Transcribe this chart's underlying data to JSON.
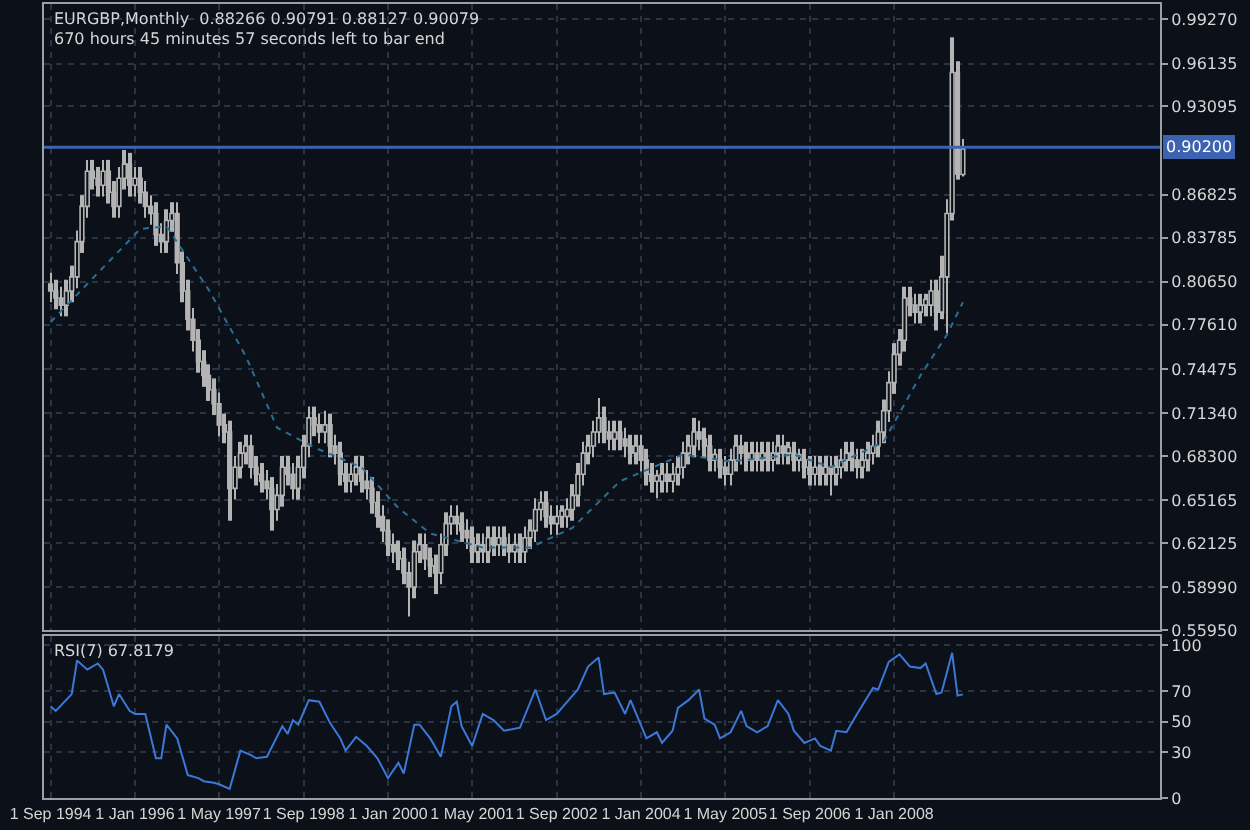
{
  "chart_data": [
    {
      "type": "candlestick",
      "title": "EURGBP,Monthly  0.88266 0.90791 0.88127 0.90079",
      "subtitle": "670 hours 45 minutes 57 seconds left to bar end",
      "color": "#b4b4b4",
      "x": [
        "1994-09",
        "1994-10",
        "1994-11",
        "1994-12",
        "1995-01",
        "1995-02",
        "1995-03",
        "1995-04",
        "1995-05",
        "1995-06",
        "1995-07",
        "1995-08",
        "1995-09",
        "1995-10",
        "1995-11",
        "1995-12",
        "1996-01",
        "1996-02",
        "1996-03",
        "1996-04",
        "1996-05",
        "1996-06",
        "1996-07",
        "1996-08",
        "1996-09",
        "1996-10",
        "1996-11",
        "1996-12",
        "1997-01",
        "1997-02",
        "1997-03",
        "1997-04",
        "1997-05",
        "1997-06",
        "1997-07",
        "1997-08",
        "1997-09",
        "1997-10",
        "1997-11",
        "1997-12",
        "1998-01",
        "1998-02",
        "1998-03",
        "1998-04",
        "1998-05",
        "1998-06",
        "1998-07",
        "1998-08",
        "1998-09",
        "1998-10",
        "1998-11",
        "1998-12",
        "1999-01",
        "1999-02",
        "1999-03",
        "1999-04",
        "1999-05",
        "1999-06",
        "1999-07",
        "1999-08",
        "1999-09",
        "1999-10",
        "1999-11",
        "1999-12",
        "2000-01",
        "2000-02",
        "2000-03",
        "2000-04",
        "2000-05",
        "2000-06",
        "2000-07",
        "2000-08",
        "2000-09",
        "2000-10",
        "2000-11",
        "2000-12",
        "2001-01",
        "2001-02",
        "2001-03",
        "2001-04",
        "2001-05",
        "2001-06",
        "2001-07",
        "2001-08",
        "2001-09",
        "2001-10",
        "2001-11",
        "2001-12",
        "2002-01",
        "2002-02",
        "2002-03",
        "2002-04",
        "2002-05",
        "2002-06",
        "2002-07",
        "2002-08",
        "2002-09",
        "2002-10",
        "2002-11",
        "2002-12",
        "2003-01",
        "2003-02",
        "2003-03",
        "2003-04",
        "2003-05",
        "2003-06",
        "2003-07",
        "2003-08",
        "2003-09",
        "2003-10",
        "2003-11",
        "2003-12",
        "2004-01",
        "2004-02",
        "2004-03",
        "2004-04",
        "2004-05",
        "2004-06",
        "2004-07",
        "2004-08",
        "2004-09",
        "2004-10",
        "2004-11",
        "2004-12",
        "2005-01",
        "2005-02",
        "2005-03",
        "2005-04",
        "2005-05",
        "2005-06",
        "2005-07",
        "2005-08",
        "2005-09",
        "2005-10",
        "2005-11",
        "2005-12",
        "2006-01",
        "2006-02",
        "2006-03",
        "2006-04",
        "2006-05",
        "2006-06",
        "2006-07",
        "2006-08",
        "2006-09",
        "2006-10",
        "2006-11",
        "2006-12",
        "2007-01",
        "2007-02",
        "2007-03",
        "2007-04",
        "2007-05",
        "2007-06",
        "2007-07",
        "2007-08",
        "2007-09",
        "2007-10",
        "2007-11",
        "2007-12",
        "2008-01",
        "2008-02",
        "2008-03",
        "2008-04",
        "2008-05",
        "2008-06",
        "2008-07",
        "2008-08",
        "2008-09",
        "2008-10",
        "2008-11",
        "2008-12",
        "2009-01",
        "2009-02"
      ],
      "ohlc": [
        [
          0.805,
          0.813,
          0.792,
          0.8
        ],
        [
          0.8,
          0.808,
          0.787,
          0.795
        ],
        [
          0.795,
          0.803,
          0.782,
          0.79
        ],
        [
          0.79,
          0.808,
          0.782,
          0.8
        ],
        [
          0.8,
          0.818,
          0.792,
          0.81
        ],
        [
          0.81,
          0.843,
          0.802,
          0.835
        ],
        [
          0.835,
          0.868,
          0.827,
          0.86
        ],
        [
          0.86,
          0.893,
          0.852,
          0.885
        ],
        [
          0.885,
          0.893,
          0.872,
          0.88
        ],
        [
          0.88,
          0.888,
          0.867,
          0.875
        ],
        [
          0.875,
          0.893,
          0.867,
          0.885
        ],
        [
          0.885,
          0.893,
          0.862,
          0.87
        ],
        [
          0.87,
          0.878,
          0.852,
          0.86
        ],
        [
          0.86,
          0.888,
          0.852,
          0.88
        ],
        [
          0.88,
          0.9,
          0.872,
          0.89
        ],
        [
          0.89,
          0.898,
          0.867,
          0.875
        ],
        [
          0.875,
          0.888,
          0.867,
          0.88
        ],
        [
          0.88,
          0.888,
          0.862,
          0.87
        ],
        [
          0.87,
          0.878,
          0.852,
          0.86
        ],
        [
          0.86,
          0.868,
          0.847,
          0.855
        ],
        [
          0.855,
          0.863,
          0.832,
          0.84
        ],
        [
          0.84,
          0.848,
          0.827,
          0.835
        ],
        [
          0.835,
          0.858,
          0.827,
          0.85
        ],
        [
          0.85,
          0.863,
          0.842,
          0.855
        ],
        [
          0.855,
          0.863,
          0.812,
          0.82
        ],
        [
          0.82,
          0.828,
          0.792,
          0.8
        ],
        [
          0.8,
          0.808,
          0.772,
          0.78
        ],
        [
          0.78,
          0.788,
          0.757,
          0.765
        ],
        [
          0.765,
          0.773,
          0.742,
          0.75
        ],
        [
          0.75,
          0.758,
          0.732,
          0.74
        ],
        [
          0.74,
          0.748,
          0.722,
          0.73
        ],
        [
          0.73,
          0.738,
          0.712,
          0.72
        ],
        [
          0.72,
          0.728,
          0.697,
          0.705
        ],
        [
          0.705,
          0.713,
          0.692,
          0.7
        ],
        [
          0.7,
          0.708,
          0.637,
          0.66
        ],
        [
          0.66,
          0.683,
          0.652,
          0.675
        ],
        [
          0.675,
          0.693,
          0.667,
          0.685
        ],
        [
          0.685,
          0.698,
          0.677,
          0.69
        ],
        [
          0.69,
          0.698,
          0.667,
          0.675
        ],
        [
          0.675,
          0.683,
          0.662,
          0.67
        ],
        [
          0.67,
          0.678,
          0.657,
          0.665
        ],
        [
          0.665,
          0.673,
          0.652,
          0.66
        ],
        [
          0.66,
          0.668,
          0.63,
          0.645
        ],
        [
          0.645,
          0.663,
          0.637,
          0.655
        ],
        [
          0.655,
          0.683,
          0.647,
          0.675
        ],
        [
          0.675,
          0.683,
          0.662,
          0.67
        ],
        [
          0.67,
          0.678,
          0.652,
          0.66
        ],
        [
          0.66,
          0.683,
          0.652,
          0.675
        ],
        [
          0.675,
          0.698,
          0.667,
          0.69
        ],
        [
          0.69,
          0.718,
          0.682,
          0.71
        ],
        [
          0.71,
          0.718,
          0.697,
          0.705
        ],
        [
          0.705,
          0.713,
          0.692,
          0.7
        ],
        [
          0.7,
          0.715,
          0.692,
          0.705
        ],
        [
          0.705,
          0.713,
          0.682,
          0.69
        ],
        [
          0.69,
          0.698,
          0.677,
          0.685
        ],
        [
          0.685,
          0.693,
          0.662,
          0.67
        ],
        [
          0.67,
          0.678,
          0.657,
          0.665
        ],
        [
          0.665,
          0.678,
          0.657,
          0.67
        ],
        [
          0.67,
          0.683,
          0.662,
          0.675
        ],
        [
          0.675,
          0.683,
          0.657,
          0.665
        ],
        [
          0.665,
          0.673,
          0.652,
          0.66
        ],
        [
          0.66,
          0.668,
          0.642,
          0.65
        ],
        [
          0.65,
          0.658,
          0.632,
          0.64
        ],
        [
          0.64,
          0.648,
          0.622,
          0.63
        ],
        [
          0.63,
          0.638,
          0.612,
          0.62
        ],
        [
          0.62,
          0.628,
          0.607,
          0.615
        ],
        [
          0.615,
          0.623,
          0.602,
          0.61
        ],
        [
          0.61,
          0.618,
          0.592,
          0.6
        ],
        [
          0.6,
          0.608,
          0.569,
          0.59
        ],
        [
          0.59,
          0.623,
          0.582,
          0.615
        ],
        [
          0.615,
          0.628,
          0.607,
          0.62
        ],
        [
          0.62,
          0.628,
          0.602,
          0.61
        ],
        [
          0.61,
          0.618,
          0.597,
          0.605
        ],
        [
          0.605,
          0.613,
          0.585,
          0.6
        ],
        [
          0.6,
          0.628,
          0.592,
          0.62
        ],
        [
          0.62,
          0.643,
          0.612,
          0.635
        ],
        [
          0.635,
          0.648,
          0.627,
          0.64
        ],
        [
          0.64,
          0.648,
          0.627,
          0.635
        ],
        [
          0.635,
          0.643,
          0.622,
          0.63
        ],
        [
          0.63,
          0.638,
          0.617,
          0.625
        ],
        [
          0.625,
          0.633,
          0.607,
          0.615
        ],
        [
          0.615,
          0.628,
          0.607,
          0.62
        ],
        [
          0.62,
          0.628,
          0.607,
          0.615
        ],
        [
          0.615,
          0.633,
          0.607,
          0.625
        ],
        [
          0.625,
          0.633,
          0.612,
          0.62
        ],
        [
          0.62,
          0.633,
          0.612,
          0.625
        ],
        [
          0.625,
          0.633,
          0.612,
          0.62
        ],
        [
          0.62,
          0.628,
          0.607,
          0.615
        ],
        [
          0.615,
          0.628,
          0.607,
          0.62
        ],
        [
          0.62,
          0.628,
          0.607,
          0.615
        ],
        [
          0.615,
          0.633,
          0.607,
          0.625
        ],
        [
          0.625,
          0.638,
          0.617,
          0.63
        ],
        [
          0.63,
          0.653,
          0.622,
          0.645
        ],
        [
          0.645,
          0.658,
          0.637,
          0.65
        ],
        [
          0.65,
          0.658,
          0.632,
          0.64
        ],
        [
          0.64,
          0.648,
          0.627,
          0.635
        ],
        [
          0.635,
          0.648,
          0.627,
          0.64
        ],
        [
          0.64,
          0.648,
          0.632,
          0.644
        ],
        [
          0.64,
          0.653,
          0.632,
          0.645
        ],
        [
          0.645,
          0.663,
          0.637,
          0.655
        ],
        [
          0.655,
          0.678,
          0.647,
          0.67
        ],
        [
          0.67,
          0.693,
          0.662,
          0.685
        ],
        [
          0.685,
          0.698,
          0.677,
          0.69
        ],
        [
          0.69,
          0.708,
          0.682,
          0.7
        ],
        [
          0.7,
          0.724,
          0.692,
          0.71
        ],
        [
          0.71,
          0.718,
          0.692,
          0.7
        ],
        [
          0.7,
          0.708,
          0.687,
          0.695
        ],
        [
          0.695,
          0.708,
          0.687,
          0.7
        ],
        [
          0.7,
          0.708,
          0.687,
          0.695
        ],
        [
          0.695,
          0.703,
          0.682,
          0.69
        ],
        [
          0.69,
          0.698,
          0.677,
          0.685
        ],
        [
          0.685,
          0.698,
          0.677,
          0.69
        ],
        [
          0.69,
          0.698,
          0.672,
          0.68
        ],
        [
          0.68,
          0.688,
          0.662,
          0.67
        ],
        [
          0.67,
          0.678,
          0.657,
          0.665
        ],
        [
          0.665,
          0.673,
          0.653,
          0.669
        ],
        [
          0.665,
          0.678,
          0.657,
          0.67
        ],
        [
          0.67,
          0.678,
          0.657,
          0.665
        ],
        [
          0.665,
          0.678,
          0.657,
          0.67
        ],
        [
          0.67,
          0.683,
          0.662,
          0.675
        ],
        [
          0.675,
          0.693,
          0.667,
          0.685
        ],
        [
          0.685,
          0.698,
          0.677,
          0.69
        ],
        [
          0.69,
          0.71,
          0.682,
          0.7
        ],
        [
          0.7,
          0.708,
          0.687,
          0.695
        ],
        [
          0.695,
          0.703,
          0.682,
          0.69
        ],
        [
          0.69,
          0.698,
          0.672,
          0.68
        ],
        [
          0.68,
          0.688,
          0.672,
          0.684
        ],
        [
          0.68,
          0.688,
          0.667,
          0.675
        ],
        [
          0.675,
          0.683,
          0.662,
          0.67
        ],
        [
          0.67,
          0.688,
          0.662,
          0.68
        ],
        [
          0.68,
          0.698,
          0.672,
          0.69
        ],
        [
          0.69,
          0.698,
          0.677,
          0.685
        ],
        [
          0.685,
          0.693,
          0.672,
          0.68
        ],
        [
          0.68,
          0.693,
          0.672,
          0.685
        ],
        [
          0.685,
          0.693,
          0.672,
          0.68
        ],
        [
          0.68,
          0.693,
          0.672,
          0.685
        ],
        [
          0.685,
          0.693,
          0.672,
          0.68
        ],
        [
          0.68,
          0.693,
          0.672,
          0.685
        ],
        [
          0.685,
          0.698,
          0.677,
          0.69
        ],
        [
          0.69,
          0.698,
          0.677,
          0.685
        ],
        [
          0.685,
          0.693,
          0.677,
          0.689
        ],
        [
          0.685,
          0.693,
          0.672,
          0.68
        ],
        [
          0.68,
          0.688,
          0.672,
          0.684
        ],
        [
          0.68,
          0.688,
          0.667,
          0.675
        ],
        [
          0.675,
          0.683,
          0.662,
          0.67
        ],
        [
          0.67,
          0.683,
          0.662,
          0.675
        ],
        [
          0.675,
          0.683,
          0.662,
          0.67
        ],
        [
          0.67,
          0.683,
          0.662,
          0.675
        ],
        [
          0.675,
          0.683,
          0.655,
          0.67
        ],
        [
          0.67,
          0.683,
          0.662,
          0.675
        ],
        [
          0.675,
          0.688,
          0.667,
          0.68
        ],
        [
          0.68,
          0.693,
          0.672,
          0.685
        ],
        [
          0.685,
          0.693,
          0.672,
          0.68
        ],
        [
          0.68,
          0.688,
          0.667,
          0.675
        ],
        [
          0.675,
          0.688,
          0.667,
          0.68
        ],
        [
          0.68,
          0.693,
          0.672,
          0.685
        ],
        [
          0.685,
          0.698,
          0.677,
          0.69
        ],
        [
          0.69,
          0.708,
          0.682,
          0.7
        ],
        [
          0.7,
          0.723,
          0.692,
          0.715
        ],
        [
          0.715,
          0.743,
          0.707,
          0.735
        ],
        [
          0.735,
          0.763,
          0.727,
          0.755
        ],
        [
          0.755,
          0.773,
          0.747,
          0.765
        ],
        [
          0.765,
          0.803,
          0.757,
          0.795
        ],
        [
          0.795,
          0.803,
          0.782,
          0.79
        ],
        [
          0.79,
          0.798,
          0.777,
          0.785
        ],
        [
          0.785,
          0.798,
          0.777,
          0.79
        ],
        [
          0.79,
          0.798,
          0.782,
          0.794
        ],
        [
          0.79,
          0.808,
          0.782,
          0.8
        ],
        [
          0.8,
          0.808,
          0.772,
          0.785
        ],
        [
          0.785,
          0.825,
          0.78,
          0.81
        ],
        [
          0.81,
          0.865,
          0.77,
          0.855
        ],
        [
          0.855,
          0.98,
          0.85,
          0.955
        ],
        [
          0.955,
          0.963,
          0.879,
          0.883
        ],
        [
          0.88266,
          0.90791,
          0.88127,
          0.90079
        ]
      ],
      "series": [
        {
          "type": "line",
          "line_style": "dotted",
          "color": "#2a6f95",
          "x": [
            "1994-09",
            "1996-02",
            "1996-07",
            "1997-03",
            "1997-10",
            "1998-04",
            "1998-11",
            "1999-08",
            "2000-03",
            "2000-09",
            "2001-07",
            "2002-04",
            "2002-12",
            "2003-09",
            "2004-09",
            "2005-06",
            "2006-06",
            "2007-01",
            "2007-11",
            "2008-06",
            "2008-11",
            "2009-02"
          ],
          "values": [
            0.778,
            0.844,
            0.846,
            0.801,
            0.754,
            0.703,
            0.689,
            0.675,
            0.646,
            0.628,
            0.618,
            0.618,
            0.632,
            0.665,
            0.684,
            0.679,
            0.684,
            0.675,
            0.693,
            0.74,
            0.769,
            0.792
          ]
        }
      ],
      "ref_lines": [
        {
          "axis": "y",
          "value": 0.902,
          "label": "0.90200",
          "color": "#3d62b0"
        }
      ],
      "xlim": [
        "1994-07-25",
        "2012-03-15"
      ],
      "xticks": [
        {
          "value": "1994-09-01",
          "label": null
        },
        {
          "value": "1996-01-01",
          "label": null
        },
        {
          "value": "1997-05-01",
          "label": null
        },
        {
          "value": "1998-09-01",
          "label": null
        },
        {
          "value": "2000-01-01",
          "label": null
        },
        {
          "value": "2001-05-01",
          "label": null
        },
        {
          "value": "2002-09-01",
          "label": null
        },
        {
          "value": "2004-01-01",
          "label": null
        },
        {
          "value": "2005-05-01",
          "label": null
        },
        {
          "value": "2006-09-01",
          "label": null
        },
        {
          "value": "2008-01-01",
          "label": null
        }
      ],
      "ylim": [
        0.5595,
        1.0036
      ],
      "yticks": [
        {
          "value": 0.9927,
          "label": "0.99270"
        },
        {
          "value": 0.96135,
          "label": "0.96135"
        },
        {
          "value": 0.93095,
          "label": "0.93095"
        },
        {
          "value": 0.86825,
          "label": "0.86825"
        },
        {
          "value": 0.83785,
          "label": "0.83785"
        },
        {
          "value": 0.8065,
          "label": "0.80650"
        },
        {
          "value": 0.7761,
          "label": "0.77610"
        },
        {
          "value": 0.74475,
          "label": "0.74475"
        },
        {
          "value": 0.7134,
          "label": "0.71340"
        },
        {
          "value": 0.683,
          "label": "0.68300"
        },
        {
          "value": 0.65165,
          "label": "0.65165"
        },
        {
          "value": 0.62125,
          "label": "0.62125"
        },
        {
          "value": 0.5899,
          "label": "0.58990"
        },
        {
          "value": 0.5595,
          "label": "0.55950"
        }
      ],
      "grid": true,
      "tick_labels": "y"
    },
    {
      "type": "line",
      "title": "RSI(7) 67.8179",
      "color": "#3c78d8",
      "x": [
        "1994-09",
        "1994-10",
        "1995-01",
        "1995-02",
        "1995-04",
        "1995-06",
        "1995-07",
        "1995-09",
        "1995-10",
        "1995-12",
        "1996-01",
        "1996-03",
        "1996-05",
        "1996-06",
        "1996-07",
        "1996-09",
        "1996-11",
        "1997-01",
        "1997-02",
        "1997-04",
        "1997-05",
        "1997-07",
        "1997-09",
        "1997-11",
        "1997-12",
        "1998-02",
        "1998-05",
        "1998-06",
        "1998-07",
        "1998-08",
        "1998-10",
        "1998-12",
        "1999-02",
        "1999-04",
        "1999-05",
        "1999-07",
        "1999-09",
        "1999-11",
        "2000-01",
        "2000-03",
        "2000-04",
        "2000-06",
        "2000-07",
        "2000-09",
        "2000-11",
        "2001-01",
        "2001-02",
        "2001-03",
        "2001-05",
        "2001-07",
        "2001-09",
        "2001-11",
        "2002-02",
        "2002-05",
        "2002-07",
        "2002-09",
        "2002-11",
        "2003-01",
        "2003-03",
        "2003-05",
        "2003-06",
        "2003-08",
        "2003-10",
        "2003-11",
        "2004-02",
        "2004-04",
        "2004-05",
        "2004-07",
        "2004-08",
        "2004-10",
        "2004-12",
        "2005-01",
        "2005-03",
        "2005-04",
        "2005-06",
        "2005-08",
        "2005-09",
        "2005-11",
        "2006-01",
        "2006-03",
        "2006-05",
        "2006-06",
        "2006-08",
        "2006-10",
        "2006-11",
        "2007-01",
        "2007-02",
        "2007-04",
        "2007-06",
        "2007-09",
        "2007-10",
        "2007-12",
        "2008-02",
        "2008-04",
        "2008-06",
        "2008-07",
        "2008-09",
        "2008-10",
        "2008-12",
        "2009-01",
        "2009-02"
      ],
      "values": [
        60,
        57,
        68,
        90,
        84,
        88,
        84,
        60,
        68,
        57,
        55,
        55,
        26,
        26,
        48,
        39,
        15,
        13,
        11,
        10,
        9,
        6,
        31,
        28,
        26,
        27,
        47,
        42,
        51,
        48,
        64,
        63,
        49,
        39,
        31,
        40,
        34,
        26,
        13,
        23,
        16,
        48,
        48,
        39,
        27,
        60,
        63,
        47,
        34,
        55,
        51,
        44,
        46,
        71,
        51,
        55,
        63,
        71,
        86,
        92,
        68,
        69,
        55,
        64,
        39,
        43,
        36,
        44,
        59,
        64,
        71,
        52,
        48,
        39,
        43,
        57,
        47,
        43,
        47,
        64,
        55,
        44,
        36,
        39,
        34,
        31,
        44,
        43,
        55,
        72,
        71,
        89,
        94,
        86,
        85,
        88,
        68,
        69,
        95,
        67,
        67.8179
      ],
      "xlim": [
        "1994-07-25",
        "2012-03-15"
      ],
      "xticks": [
        {
          "value": "1994-09-01",
          "label": "1 Sep 1994"
        },
        {
          "value": "1996-01-01",
          "label": "1 Jan 1996"
        },
        {
          "value": "1997-05-01",
          "label": "1 May 1997"
        },
        {
          "value": "1998-09-01",
          "label": "1 Sep 1998"
        },
        {
          "value": "2000-01-01",
          "label": "1 Jan 2000"
        },
        {
          "value": "2001-05-01",
          "label": "1 May 2001"
        },
        {
          "value": "2002-09-01",
          "label": "1 Sep 2002"
        },
        {
          "value": "2004-01-01",
          "label": "1 Jan 2004"
        },
        {
          "value": "2005-05-01",
          "label": "1 May 2005"
        },
        {
          "value": "2006-09-01",
          "label": "1 Sep 2006"
        },
        {
          "value": "2008-01-01",
          "label": "1 Jan 2008"
        }
      ],
      "ylim": [
        0,
        106
      ],
      "yticks": [
        100,
        70,
        50,
        30,
        0
      ],
      "grid": true
    }
  ]
}
